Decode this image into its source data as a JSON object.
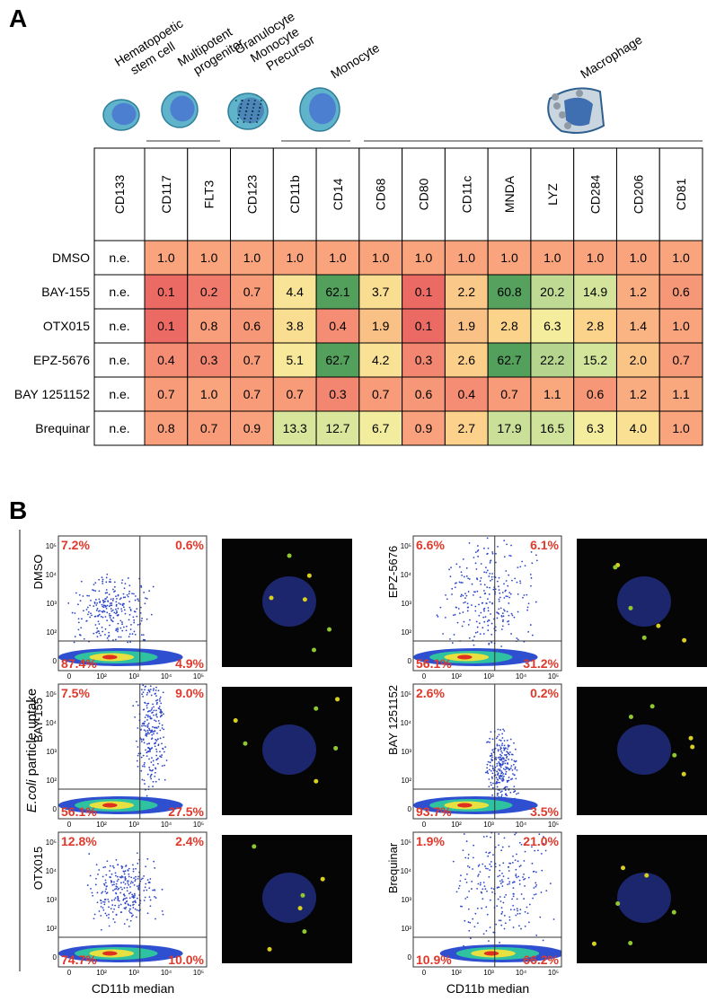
{
  "panel_a": {
    "label": "A",
    "cell_types": [
      "Hematopoetic stem cell",
      "Multipotent progenitor",
      "Granulocyte Monocyte Precursor",
      "Monocyte",
      "Macrophage"
    ],
    "table": {
      "columns": [
        "CD133",
        "CD117",
        "FLT3",
        "CD123",
        "CD11b",
        "CD14",
        "CD68",
        "CD80",
        "CD11c",
        "MNDA",
        "LYZ",
        "CD284",
        "CD206",
        "CD81"
      ],
      "rows": [
        {
          "name": "DMSO",
          "values": [
            "n.e.",
            "1.0",
            "1.0",
            "1.0",
            "1.0",
            "1.0",
            "1.0",
            "1.0",
            "1.0",
            "1.0",
            "1.0",
            "1.0",
            "1.0",
            "1.0"
          ]
        },
        {
          "name": "BAY-155",
          "values": [
            "n.e.",
            "0.1",
            "0.2",
            "0.7",
            "4.4",
            "62.1",
            "3.7",
            "0.1",
            "2.2",
            "60.8",
            "20.2",
            "14.9",
            "1.2",
            "0.6"
          ]
        },
        {
          "name": "OTX015",
          "values": [
            "n.e.",
            "0.1",
            "0.8",
            "0.6",
            "3.8",
            "0.4",
            "1.9",
            "0.1",
            "1.9",
            "2.8",
            "6.3",
            "2.8",
            "1.4",
            "1.0"
          ]
        },
        {
          "name": "EPZ-5676",
          "values": [
            "n.e.",
            "0.4",
            "0.3",
            "0.7",
            "5.1",
            "62.7",
            "4.2",
            "0.3",
            "2.6",
            "62.7",
            "22.2",
            "15.2",
            "2.0",
            "0.7"
          ]
        },
        {
          "name": "BAY 1251152",
          "values": [
            "n.e.",
            "0.7",
            "1.0",
            "0.7",
            "0.7",
            "0.3",
            "0.7",
            "0.6",
            "0.4",
            "0.7",
            "1.1",
            "0.6",
            "1.2",
            "1.1"
          ]
        },
        {
          "name": "Brequinar",
          "values": [
            "n.e.",
            "0.8",
            "0.7",
            "0.9",
            "13.3",
            "12.7",
            "6.7",
            "0.9",
            "2.7",
            "17.9",
            "16.5",
            "6.3",
            "4.0",
            "1.0"
          ]
        }
      ]
    }
  },
  "panel_b": {
    "label": "B",
    "y_axis_label": {
      "italic": "E.coli",
      "rest": "particle uptake"
    },
    "x_axis_label": "CD11b median",
    "x_ticks": [
      "0",
      "10²",
      "10³",
      "10⁴",
      "10⁵"
    ],
    "y_ticks": [
      "0",
      "10²",
      "10³",
      "10⁴",
      "10⁵"
    ],
    "plots": [
      {
        "treatment": "DMSO",
        "upper_left": "7.2%",
        "upper_right": "0.6%",
        "lower_left": "87.4%",
        "lower_right": "4.9%"
      },
      {
        "treatment": "BAY-155",
        "upper_left": "7.5%",
        "upper_right": "9.0%",
        "lower_left": "56.1%",
        "lower_right": "27.5%"
      },
      {
        "treatment": "OTX015",
        "upper_left": "12.8%",
        "upper_right": "2.4%",
        "lower_left": "74.7%",
        "lower_right": "10.0%"
      },
      {
        "treatment": "EPZ-5676",
        "upper_left": "6.6%",
        "upper_right": "6.1%",
        "lower_left": "56.1%",
        "lower_right": "31.2%"
      },
      {
        "treatment": "BAY 1251152",
        "upper_left": "2.6%",
        "upper_right": "0.2%",
        "lower_left": "93.7%",
        "lower_right": "3.5%"
      },
      {
        "treatment": "Brequinar",
        "upper_left": "1.9%",
        "upper_right": "21.0%",
        "lower_left": "10.9%",
        "lower_right": "66.2%"
      }
    ]
  }
}
